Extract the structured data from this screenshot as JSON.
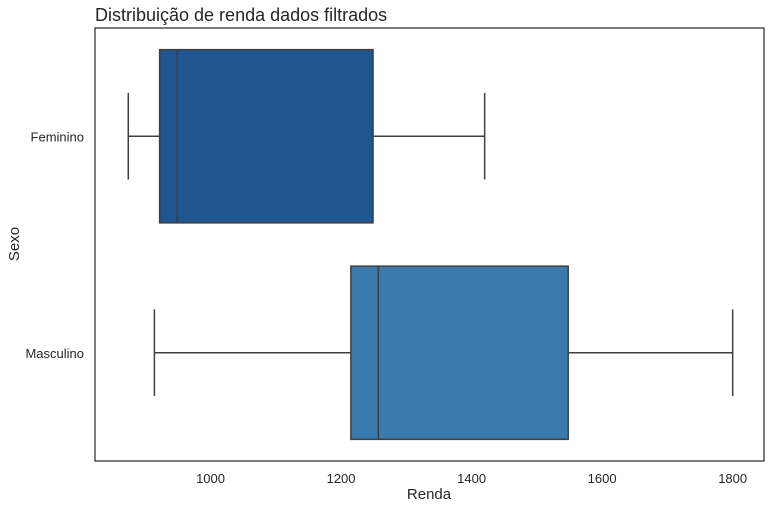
{
  "chart_data": {
    "type": "boxplot",
    "orientation": "horizontal",
    "title": "Distribuição de renda dados filtrados",
    "xlabel": "Renda",
    "ylabel": "Sexo",
    "xlim": [
      823,
      1848
    ],
    "xticks": [
      1000,
      1200,
      1400,
      1600,
      1800
    ],
    "grid": false,
    "categories": [
      "Feminino",
      "Masculino"
    ],
    "boxes": [
      {
        "category": "Feminino",
        "whisker_low": 874,
        "q1": 922,
        "median": 949,
        "q3": 1249,
        "whisker_high": 1420,
        "color": "#1f5591"
      },
      {
        "category": "Masculino",
        "whisker_low": 914,
        "q1": 1215,
        "median": 1257,
        "q3": 1548,
        "whisker_high": 1800,
        "color": "#3b7aab"
      }
    ]
  }
}
